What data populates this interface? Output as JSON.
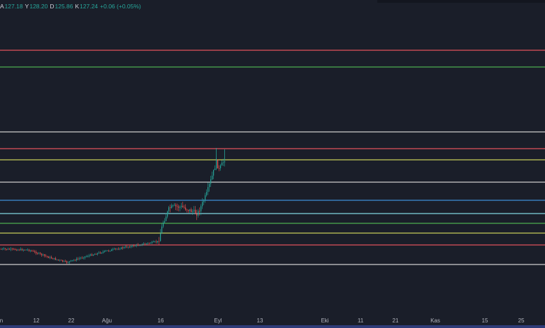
{
  "ohlc": {
    "open_label": "A",
    "open": "127.18",
    "high_label": "Y",
    "high": "128.20",
    "low_label": "D",
    "low": "125.86",
    "close_label": "K",
    "close": "127.24",
    "change": "+0.06 (+0.05%)"
  },
  "colors": {
    "background": "#1a1e29",
    "up_candle": "#26a69a",
    "down_candle": "#ef5350",
    "axis_text": "#b2b5be"
  },
  "x_axis_labels": [
    "n",
    "12",
    "22",
    "Ağu",
    "16",
    "Eyl",
    "13",
    "Eki",
    "11",
    "21",
    "Kas",
    "15",
    "25"
  ],
  "horizontal_levels": [
    {
      "color": "#e0525b"
    },
    {
      "color": "#4caf50"
    },
    {
      "color": "#cfcfcf"
    },
    {
      "color": "#e0525b"
    },
    {
      "color": "#c8cf5a"
    },
    {
      "color": "#cfcfcf"
    },
    {
      "color": "#3d8fd6"
    },
    {
      "color": "#80d6e0"
    },
    {
      "color": "#4caf50"
    },
    {
      "color": "#c8cf5a"
    },
    {
      "color": "#e0525b"
    },
    {
      "color": "#cfcfcf"
    }
  ],
  "chart_data": {
    "type": "candlestick",
    "price_path": [
      [
        "n",
        0.0
      ],
      [
        "12",
        0.02
      ],
      [
        "22",
        -0.05
      ],
      [
        "Ağu",
        0.0
      ],
      [
        "16",
        0.04
      ],
      [
        "16",
        0.28
      ],
      [
        "",
        0.2
      ],
      [
        "",
        0.16
      ],
      [
        "",
        0.25
      ],
      [
        "",
        0.3
      ],
      [
        "",
        0.42
      ],
      [
        "Eyl",
        0.55
      ],
      [
        "",
        0.52
      ],
      [
        "",
        0.58
      ]
    ]
  }
}
